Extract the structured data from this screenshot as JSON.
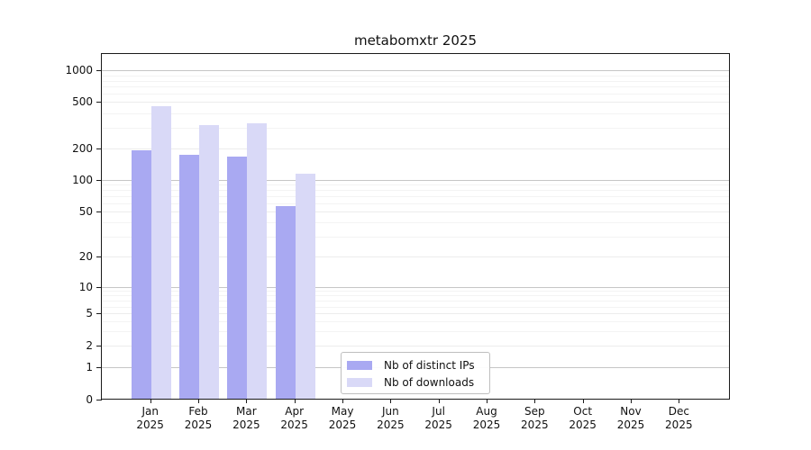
{
  "title": "metabomxtr 2025",
  "chart_data": {
    "type": "bar",
    "title": "metabomxtr 2025",
    "categories": [
      "Jan",
      "Feb",
      "Mar",
      "Apr",
      "May",
      "Jun",
      "Jul",
      "Aug",
      "Sep",
      "Oct",
      "Nov",
      "Dec"
    ],
    "year": "2025",
    "series": [
      {
        "name": "Nb of distinct IPs",
        "color": "#a9a9f2",
        "values": [
          190,
          172,
          165,
          55,
          0,
          0,
          0,
          0,
          0,
          0,
          0,
          0
        ]
      },
      {
        "name": "Nb of downloads",
        "color": "#d9d9f7",
        "values": [
          455,
          310,
          320,
          112,
          0,
          0,
          0,
          0,
          0,
          0,
          0,
          0
        ]
      }
    ],
    "y_ticks": [
      0,
      1,
      2,
      5,
      10,
      20,
      50,
      100,
      200,
      500,
      1000
    ],
    "ylabel": "",
    "xlabel": "",
    "ylim": [
      0,
      1400
    ],
    "y_scale": "log-like (log above 1, linear 0-1)",
    "grid": "horizontal, log minor lines",
    "legend_position": "bottom-center inside plot"
  },
  "colors": {
    "major_gridline": "#c6c6c6",
    "mid_gridline": "#ececec",
    "minor_gridline": "#f3f3f3",
    "axis": "#1a1a1a",
    "text": "#111111",
    "background": "#ffffff"
  }
}
